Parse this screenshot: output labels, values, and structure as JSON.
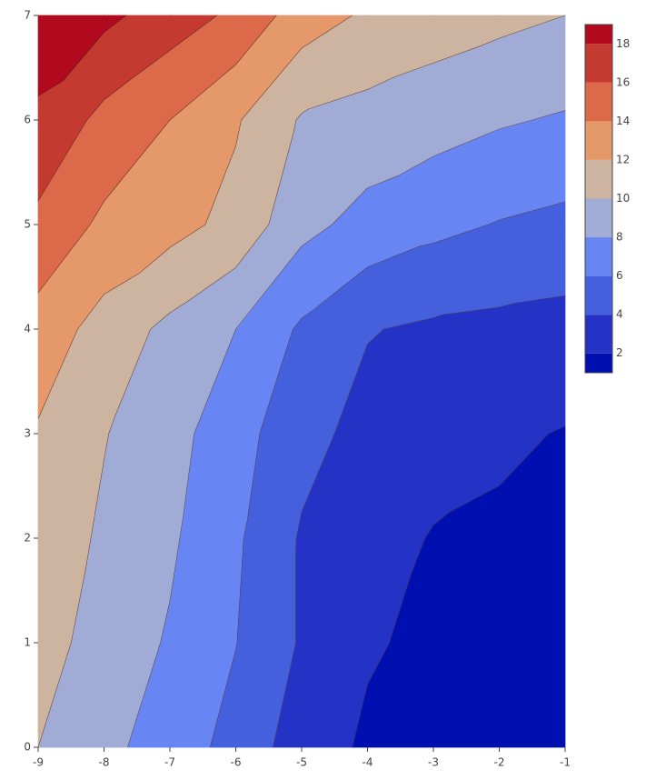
{
  "chart_data": {
    "type": "contour",
    "x": [
      -9,
      -8,
      -7,
      -6,
      -5,
      -4,
      -3,
      -2,
      -1
    ],
    "y": [
      0,
      1,
      2,
      3,
      4,
      5,
      6,
      7
    ],
    "z": [
      [
        10,
        8.5,
        7.1,
        5.3,
        3.0,
        1.7,
        1.4,
        1.2,
        1.1
      ],
      [
        10.8,
        9.2,
        7.8,
        6.05,
        3.8,
        2.2,
        1.6,
        1.4,
        1.3
      ],
      [
        11.2,
        9.7,
        8.3,
        6.3,
        3.8,
        2.7,
        1.9,
        1.7,
        1.6
      ],
      [
        11.8,
        10.1,
        8.7,
        6.8,
        4.6,
        3.4,
        2.7,
        2.3,
        1.9
      ],
      [
        13.2,
        11.2,
        9.5,
        8.0,
        5.7,
        4.1,
        3.7,
        3.5,
        3.3
      ],
      [
        15.5,
        13.6,
        12.7,
        11.4,
        8.6,
        7.3,
        6.5,
        5.9,
        5.5
      ],
      [
        17.7,
        15.4,
        14.0,
        12.2,
        9.8,
        9.3,
        8.8,
        8.2,
        7.8
      ],
      [
        19.0,
        18.5,
        17.0,
        15.6,
        13.0,
        11.7,
        11.0,
        10.5,
        10.0
      ]
    ],
    "levels": [
      2,
      4,
      6,
      8,
      10,
      12,
      14,
      16,
      18
    ],
    "colors": [
      "#0010b0",
      "#2433c6",
      "#4560dd",
      "#6885f4",
      "#a0acd6",
      "#cdb4a0",
      "#e5996b",
      "#dc6a4a",
      "#c43a30",
      "#b10a1f"
    ],
    "zlim": [
      1,
      19
    ],
    "xlim": [
      -9,
      -1
    ],
    "ylim": [
      0,
      7
    ],
    "xticks": [
      -9,
      -8,
      -7,
      -6,
      -5,
      -4,
      -3,
      -2,
      -1
    ],
    "yticks": [
      0,
      1,
      2,
      3,
      4,
      5,
      6,
      7
    ]
  }
}
